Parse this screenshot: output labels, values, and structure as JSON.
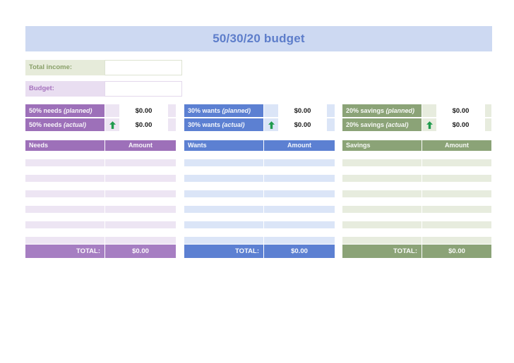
{
  "title": "50/30/20 budget",
  "income": {
    "label": "Total income:",
    "value": ""
  },
  "budget": {
    "label": "Budget:",
    "value": ""
  },
  "sections": [
    {
      "id": "needs",
      "planned_label": "50% needs",
      "planned_suffix": "(planned)",
      "planned_amount": "$0.00",
      "actual_label": "50% needs",
      "actual_suffix": "(actual)",
      "actual_amount": "$0.00",
      "table_header": "Needs",
      "amount_header": "Amount",
      "total_label": "TOTAL:",
      "total_amount": "$0.00",
      "rows": 12
    },
    {
      "id": "wants",
      "planned_label": "30% wants",
      "planned_suffix": "(planned)",
      "planned_amount": "$0.00",
      "actual_label": "30% wants",
      "actual_suffix": "(actual)",
      "actual_amount": "$0.00",
      "table_header": "Wants",
      "amount_header": "Amount",
      "total_label": "TOTAL:",
      "total_amount": "$0.00",
      "rows": 12
    },
    {
      "id": "savings",
      "planned_label": "20% savings",
      "planned_suffix": "(planned)",
      "planned_amount": "$0.00",
      "actual_label": "20% savings",
      "actual_suffix": "(actual)",
      "actual_amount": "$0.00",
      "table_header": "Savings",
      "amount_header": "Amount",
      "total_label": "TOTAL:",
      "total_amount": "$0.00",
      "rows": 12
    }
  ],
  "colors": {
    "title_bg": "#cdd9f2",
    "title_text": "#5d7dca",
    "income_label_bg": "#e6ebda",
    "income_label_text": "#89a069",
    "budget_label_bg": "#e9def1",
    "budget_label_text": "#a571bd",
    "arrow_green": "#1f9b4d",
    "needs": {
      "strong": "#9d70b9",
      "light": "#ede5f3",
      "total": "#a67ec2"
    },
    "wants": {
      "strong": "#5c80d2",
      "light": "#dbe5f7",
      "total": "#5c80d2"
    },
    "savings": {
      "strong": "#8ba377",
      "light": "#e7ecde",
      "total": "#8ba377"
    }
  }
}
